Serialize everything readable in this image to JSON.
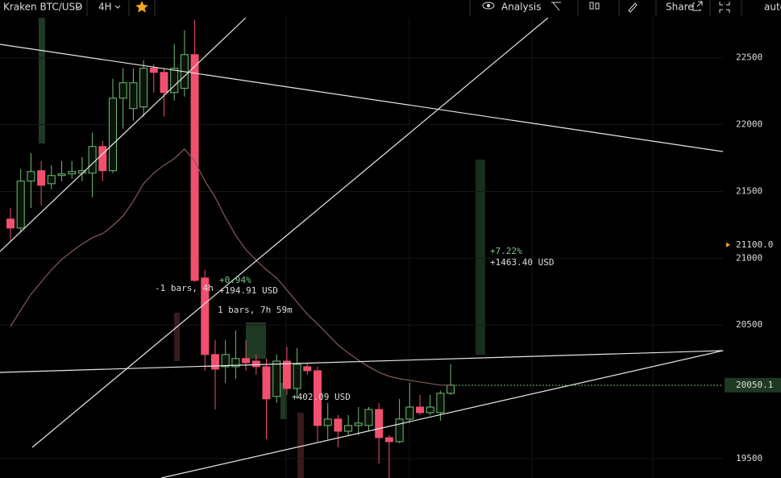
{
  "toolbar": {
    "symbol": "Kraken BTC/USD",
    "interval": "4H",
    "analysis": "Analysis",
    "share": "Share",
    "scale": "auto"
  },
  "chart_data": {
    "type": "candlestick",
    "open": [
      21293,
      21226,
      21577,
      21655,
      21558,
      21619,
      21631,
      21637,
      21637,
      21836,
      21655,
      22198,
      22120,
      22132,
      22422,
      22391,
      22240,
      22271,
      22524,
      20852,
      20279,
      20188,
      20188,
      20249,
      20230,
      20188,
      19965,
      20230,
      20025,
      20188,
      20158,
      19748,
      19796,
      19705,
      19748,
      19748,
      19868,
      19657,
      19627,
      19796,
      19886,
      19844,
      19844,
      19989
    ],
    "high": [
      21377,
      21667,
      21788,
      21727,
      21697,
      21727,
      21727,
      21758,
      21939,
      21878,
      22343,
      22422,
      22422,
      22482,
      22452,
      22422,
      22603,
      22705,
      22784,
      20913,
      20388,
      20388,
      20460,
      20388,
      20279,
      20249,
      20279,
      20339,
      20327,
      20218,
      20188,
      19917,
      19826,
      19826,
      19886,
      19886,
      19917,
      19675,
      19947,
      20067,
      19977,
      19977,
      20007,
      20206
    ],
    "low": [
      21124,
      21196,
      21377,
      21395,
      21516,
      21577,
      21595,
      21577,
      21456,
      21577,
      21637,
      21969,
      22029,
      22059,
      22240,
      22059,
      22180,
      22210,
      20822,
      20158,
      19868,
      20067,
      20098,
      20158,
      20128,
      19645,
      19917,
      19977,
      19947,
      20128,
      19627,
      19645,
      19585,
      19675,
      19675,
      19705,
      19464,
      19355,
      19615,
      19766,
      19826,
      19826,
      19784,
      19977
    ],
    "close": [
      21226,
      21577,
      21649,
      21546,
      21619,
      21631,
      21649,
      21655,
      21836,
      21655,
      22198,
      22313,
      22313,
      22422,
      22391,
      22240,
      22422,
      22524,
      20834,
      20279,
      20170,
      20279,
      20249,
      20218,
      20188,
      19947,
      20230,
      20025,
      20206,
      20158,
      19748,
      19796,
      19705,
      19748,
      19766,
      19868,
      19657,
      19627,
      19796,
      19886,
      19844,
      19886,
      19989,
      20050.1
    ],
    "ma": [
      20490,
      20611,
      20731,
      20822,
      20913,
      20991,
      21051,
      21106,
      21154,
      21184,
      21245,
      21317,
      21426,
      21558,
      21637,
      21697,
      21745,
      21818,
      21727,
      21577,
      21456,
      21305,
      21172,
      21063,
      20985,
      20913,
      20852,
      20762,
      20671,
      20581,
      20508,
      20430,
      20351,
      20291,
      20237,
      20188,
      20146,
      20116,
      20098,
      20086,
      20074,
      20062,
      20050,
      20050
    ],
    "up_color": "#6fbf73",
    "down_color": "#f0506e",
    "ma_color": "#8a5a55",
    "ylim": [
      19355,
      22800
    ],
    "yticks": [
      19500,
      20500,
      21000,
      21500,
      22000,
      22500
    ],
    "alert": {
      "value": 21100,
      "label": "21100.0"
    },
    "annotations": [
      "+7.22%",
      "+1463.40 USD",
      "+0.94%",
      "+194.91 USD",
      "-1 bars, 4h",
      "1 bars, 7h 59m",
      "+402.09 USD"
    ],
    "grid": true
  }
}
